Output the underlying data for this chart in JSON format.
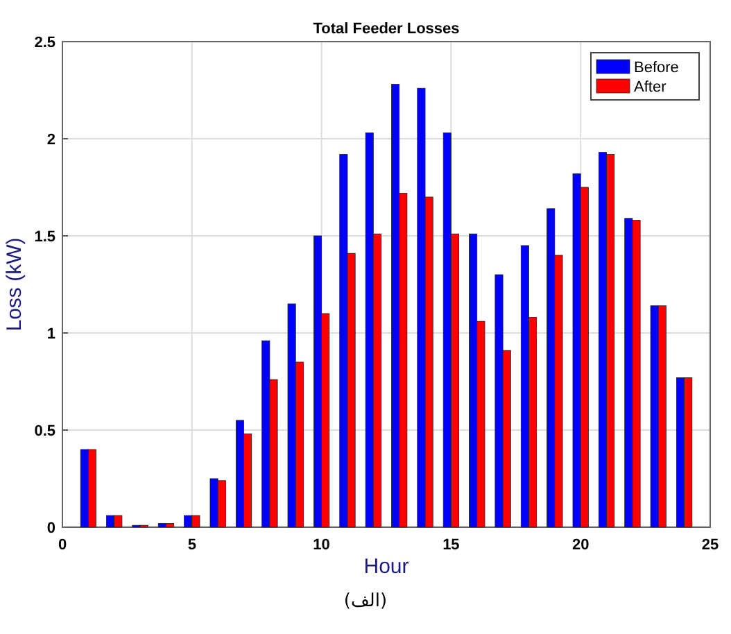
{
  "chart_data": {
    "type": "bar",
    "title": "Total Feeder Losses",
    "xlabel": "Hour",
    "ylabel": "Loss (kW)",
    "x": [
      1,
      2,
      3,
      4,
      5,
      6,
      7,
      8,
      9,
      10,
      11,
      12,
      13,
      14,
      15,
      16,
      17,
      18,
      19,
      20,
      21,
      22,
      23,
      24
    ],
    "series": [
      {
        "name": "Before",
        "color": "#0000ff",
        "values": [
          0.4,
          0.06,
          0.01,
          0.02,
          0.06,
          0.25,
          0.55,
          0.96,
          1.15,
          1.5,
          1.92,
          2.03,
          2.28,
          2.26,
          2.03,
          1.51,
          1.3,
          1.45,
          1.64,
          1.82,
          1.93,
          1.59,
          1.14,
          0.77
        ]
      },
      {
        "name": "After",
        "color": "#ff0000",
        "values": [
          0.4,
          0.06,
          0.01,
          0.02,
          0.06,
          0.24,
          0.48,
          0.76,
          0.85,
          1.1,
          1.41,
          1.51,
          1.72,
          1.7,
          1.51,
          1.06,
          0.91,
          1.08,
          1.4,
          1.75,
          1.92,
          1.58,
          1.14,
          0.77
        ]
      }
    ],
    "xlim": [
      0,
      25
    ],
    "xticks": [
      0,
      5,
      10,
      15,
      20,
      25
    ],
    "ylim": [
      0,
      2.5
    ],
    "yticks": [
      0,
      0.5,
      1,
      1.5,
      2,
      2.5
    ],
    "grid": true,
    "legend": "top right",
    "annotations": [
      "(الف)"
    ]
  }
}
